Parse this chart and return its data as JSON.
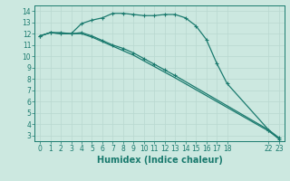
{
  "xlabel": "Humidex (Indice chaleur)",
  "bg_color": "#cce8e0",
  "line_color": "#1a7a6e",
  "grid_color": "#b8d8d0",
  "line1_x": [
    0,
    1,
    2,
    3,
    4,
    5,
    6,
    7,
    8,
    9,
    10,
    11,
    12,
    13,
    14,
    15,
    16,
    17,
    18,
    22,
    23
  ],
  "line1_y": [
    11.8,
    12.1,
    12.1,
    12.0,
    12.9,
    13.2,
    13.4,
    13.8,
    13.8,
    13.7,
    13.6,
    13.6,
    13.7,
    13.7,
    13.4,
    12.7,
    11.5,
    9.4,
    7.6,
    3.5,
    2.8
  ],
  "line2_x": [
    0,
    1,
    2,
    3,
    4,
    5,
    6,
    7,
    8,
    9,
    10,
    11,
    12,
    13,
    22,
    23
  ],
  "line2_y": [
    11.8,
    12.1,
    12.0,
    12.0,
    12.1,
    11.8,
    11.4,
    11.0,
    10.7,
    10.3,
    9.8,
    9.3,
    8.8,
    8.3,
    3.5,
    2.7
  ],
  "line3_x": [
    0,
    1,
    2,
    3,
    4,
    5,
    6,
    7,
    8,
    9,
    10,
    11,
    12,
    13,
    22,
    23
  ],
  "line3_y": [
    11.8,
    12.1,
    12.0,
    12.0,
    12.0,
    11.7,
    11.3,
    10.9,
    10.5,
    10.1,
    9.6,
    9.1,
    8.6,
    8.1,
    3.4,
    2.7
  ],
  "xlim": [
    -0.5,
    23.5
  ],
  "ylim": [
    2.5,
    14.5
  ],
  "xtick_positions": [
    0,
    1,
    2,
    3,
    4,
    5,
    6,
    7,
    8,
    9,
    10,
    11,
    12,
    13,
    14,
    15,
    16,
    17,
    18,
    22,
    23
  ],
  "xtick_labels": [
    "0",
    "1",
    "2",
    "3",
    "4",
    "5",
    "6",
    "7",
    "8",
    "9",
    "10",
    "11",
    "12",
    "13",
    "14",
    "15",
    "16",
    "17",
    "18",
    "22",
    "23"
  ],
  "yticks": [
    3,
    4,
    5,
    6,
    7,
    8,
    9,
    10,
    11,
    12,
    13,
    14
  ],
  "tick_fontsize": 5.5,
  "xlabel_fontsize": 7
}
